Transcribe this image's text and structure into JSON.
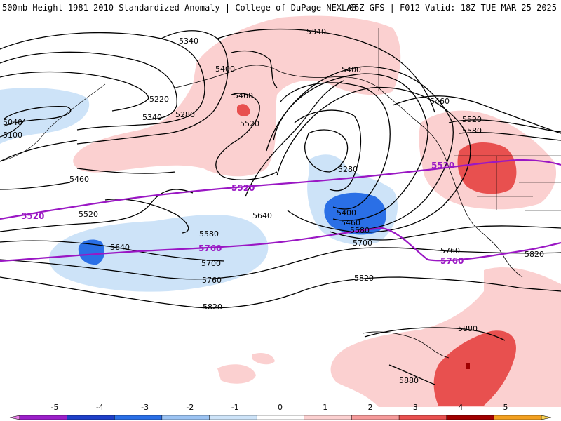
{
  "header": {
    "title": "500mb Height 1981-2010 Standardized Anomaly | College of DuPage NEXLAB",
    "run_info": "06Z GFS | F012 Valid: 18Z TUE MAR 25 2025"
  },
  "contour_labels": {
    "l5040": "5040",
    "l5100": "5100",
    "l5220": "5220",
    "l5280a": "5280",
    "l5340a": "5340",
    "l5340b": "5340",
    "l5340c": "5340",
    "l5400a": "5400",
    "l5400b": "5400",
    "l5400c": "5400",
    "l5460a": "5460",
    "l5460b": "5460",
    "l5460c": "5460",
    "l5460d": "5460",
    "l5520a": "5520",
    "l5520b": "5520",
    "l5520c": "5520",
    "l5580a": "5580",
    "l5580b": "5580",
    "l5580c": "5580",
    "l5280b": "5280",
    "l5640a": "5640",
    "l5640b": "5640",
    "l5700a": "5700",
    "l5700b": "5700",
    "l5760a": "5760",
    "l5760b": "5760",
    "l5820a": "5820",
    "l5820b": "5820",
    "l5820c": "5820",
    "l5880a": "5880",
    "l5880b": "5880"
  },
  "thickness_labels": {
    "p5520a": "5520",
    "p5520b": "5520",
    "p5520c": "5520",
    "p5760a": "5760",
    "p5760b": "5760"
  },
  "legend": {
    "ticks": [
      "-5",
      "-4",
      "-3",
      "-2",
      "-1",
      "0",
      "1",
      "2",
      "3",
      "4",
      "5"
    ],
    "colors": [
      "#e87fe8",
      "#9b1fc9",
      "#1e3fc8",
      "#2a6fe6",
      "#9cc3f2",
      "#cde3f8",
      "#ffffff",
      "#fbd0d0",
      "#f59a9a",
      "#e8504f",
      "#a00000",
      "#f2a020",
      "#f7d050"
    ]
  }
}
